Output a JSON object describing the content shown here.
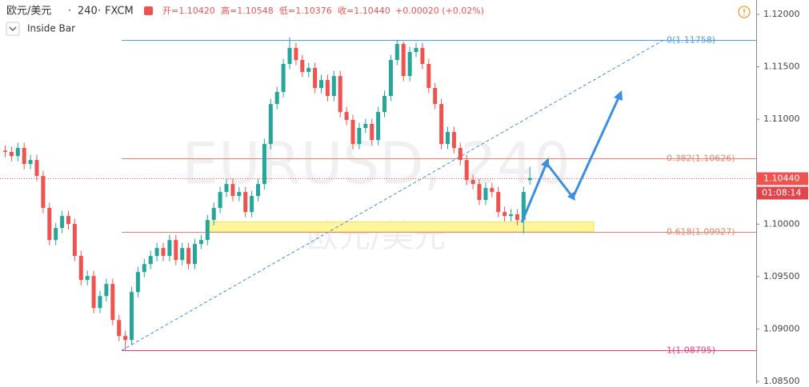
{
  "chart_data": {
    "type": "candlestick",
    "symbol": "欧元/美元",
    "interval": "240",
    "source": "FXCM",
    "ohlc_header": [
      "开=1.10420",
      "高=1.10548",
      "低=1.10376",
      "收=1.10440",
      "+0.00020 (+0.02%)"
    ],
    "indicator": "Inside Bar",
    "watermark": "EURUSD, 240",
    "up_color": "#26a69a",
    "down_color": "#ef5350",
    "ylim": [
      1.08477,
      1.12137
    ],
    "yticks": [
      {
        "value": 1.12,
        "label": "1.12000"
      },
      {
        "value": 1.115,
        "label": "1.11500"
      },
      {
        "value": 1.11,
        "label": "1.11000"
      },
      {
        "value": 1.1,
        "label": "1.10000"
      },
      {
        "value": 1.095,
        "label": "1.09500"
      },
      {
        "value": 1.09,
        "label": "1.09000"
      },
      {
        "value": 1.085,
        "label": "1.08500"
      }
    ],
    "last_price": {
      "value": 1.1044,
      "label": "1.10440",
      "color": "#ef5350"
    },
    "countdown": "01:08:14",
    "fib_levels": [
      {
        "value": 1.11758,
        "label": "0(1.11758)",
        "color": "#4a9fe0"
      },
      {
        "value": 1.10626,
        "label": "0.382(1.10626)",
        "color": "#e8846b"
      },
      {
        "value": 1.09927,
        "label": "0.618(1.09927)",
        "color": "#e8846b"
      },
      {
        "value": 1.08795,
        "label": "1(1.08795)",
        "color": "#e0407a"
      }
    ],
    "zone": {
      "low": 1.09927,
      "high": 1.1002,
      "color": "#fff59d"
    },
    "open": [
      1.107,
      1.10688,
      1.10649,
      1.10726,
      1.10573,
      1.10611,
      1.10459,
      1.10154,
      1.09848,
      1.09963,
      1.10077,
      1.10001,
      1.09696,
      1.09467,
      1.09505,
      1.092,
      1.09314,
      1.09429,
      1.09085,
      1.08933,
      1.08895,
      1.09352,
      1.09543,
      1.09619,
      1.09696,
      1.09772,
      1.09696,
      1.09848,
      1.09658,
      1.09772,
      1.09619,
      1.0981,
      1.09848,
      1.10039,
      1.10154,
      1.10306,
      1.10382,
      1.10268,
      1.10306,
      1.10115,
      1.10268,
      1.10382,
      1.10764,
      1.11145,
      1.1126,
      1.11527,
      1.1168,
      1.11565,
      1.11451,
      1.11489,
      1.11298,
      1.11374,
      1.11222,
      1.11412,
      1.11069,
      1.10993,
      1.10764,
      1.10917,
      1.10955,
      1.10802,
      1.11069,
      1.11222,
      1.11565,
      1.11718,
      1.11412,
      1.11641,
      1.1168,
      1.11527,
      1.11298,
      1.11145,
      1.10764,
      1.10878,
      1.10726,
      1.10611,
      1.10421,
      1.10382,
      1.1023,
      1.10344,
      1.10306,
      1.10115,
      1.10077,
      1.10093,
      1.10039,
      1.1042
    ],
    "high": [
      1.1075,
      1.10738,
      1.10776,
      1.10776,
      1.10661,
      1.10661,
      1.10509,
      1.10204,
      1.10013,
      1.10127,
      1.10127,
      1.10051,
      1.09746,
      1.09555,
      1.09555,
      1.09364,
      1.09479,
      1.09479,
      1.09135,
      1.08983,
      1.09402,
      1.09593,
      1.09669,
      1.09746,
      1.09822,
      1.09822,
      1.09898,
      1.09898,
      1.09822,
      1.09822,
      1.0986,
      1.09898,
      1.10089,
      1.10204,
      1.10356,
      1.10432,
      1.10432,
      1.10356,
      1.10356,
      1.10318,
      1.10432,
      1.10814,
      1.11195,
      1.1131,
      1.11577,
      1.1178,
      1.1173,
      1.11615,
      1.11539,
      1.11539,
      1.11424,
      1.11424,
      1.11462,
      1.11462,
      1.11119,
      1.11043,
      1.10967,
      1.11005,
      1.11005,
      1.11119,
      1.11272,
      1.11615,
      1.11758,
      1.1174,
      1.11691,
      1.1173,
      1.1173,
      1.11577,
      1.11348,
      1.11195,
      1.10928,
      1.10928,
      1.10776,
      1.10661,
      1.10471,
      1.10432,
      1.10394,
      1.10394,
      1.10356,
      1.10165,
      1.10143,
      1.10143,
      1.10356,
      1.10548
    ],
    "low": [
      1.10638,
      1.10599,
      1.10599,
      1.10523,
      1.10523,
      1.10409,
      1.10104,
      1.09798,
      1.09798,
      1.09913,
      1.09951,
      1.09646,
      1.09417,
      1.09417,
      1.0915,
      1.0915,
      1.09264,
      1.09035,
      1.08883,
      1.08795,
      1.08845,
      1.09302,
      1.09493,
      1.09569,
      1.09646,
      1.09646,
      1.09646,
      1.09608,
      1.09608,
      1.09569,
      1.09569,
      1.0976,
      1.09798,
      1.09989,
      1.10104,
      1.10256,
      1.10218,
      1.10218,
      1.10065,
      1.10065,
      1.10218,
      1.10332,
      1.10714,
      1.11095,
      1.1121,
      1.11477,
      1.11515,
      1.11401,
      1.11401,
      1.11248,
      1.11248,
      1.11172,
      1.11172,
      1.11019,
      1.10943,
      1.10714,
      1.10714,
      1.10867,
      1.10752,
      1.10752,
      1.11019,
      1.11172,
      1.11515,
      1.11362,
      1.11362,
      1.11591,
      1.11477,
      1.11248,
      1.11095,
      1.10714,
      1.10714,
      1.10676,
      1.10561,
      1.10371,
      1.10332,
      1.1018,
      1.1018,
      1.10256,
      1.10065,
      1.10027,
      1.10027,
      1.09989,
      1.0991,
      1.10376
    ],
    "close": [
      1.10688,
      1.10649,
      1.10726,
      1.10573,
      1.10611,
      1.10459,
      1.10154,
      1.09848,
      1.09963,
      1.10077,
      1.10001,
      1.09696,
      1.09467,
      1.09505,
      1.092,
      1.09314,
      1.09429,
      1.09085,
      1.08933,
      1.08895,
      1.09352,
      1.09543,
      1.09619,
      1.09696,
      1.09772,
      1.09696,
      1.09848,
      1.09658,
      1.09772,
      1.09619,
      1.0981,
      1.09848,
      1.10039,
      1.10154,
      1.10306,
      1.10382,
      1.10268,
      1.10306,
      1.10115,
      1.10268,
      1.10382,
      1.10764,
      1.11145,
      1.1126,
      1.11527,
      1.1168,
      1.11565,
      1.11451,
      1.11489,
      1.11298,
      1.11374,
      1.11222,
      1.11412,
      1.11069,
      1.10993,
      1.10764,
      1.10917,
      1.10955,
      1.10802,
      1.11069,
      1.11222,
      1.11565,
      1.11718,
      1.11412,
      1.11641,
      1.1168,
      1.11527,
      1.11298,
      1.11145,
      1.10764,
      1.10878,
      1.10726,
      1.10611,
      1.10421,
      1.10382,
      1.1023,
      1.10344,
      1.10306,
      1.10115,
      1.10077,
      1.10093,
      1.10039,
      1.10306,
      1.1044
    ]
  }
}
